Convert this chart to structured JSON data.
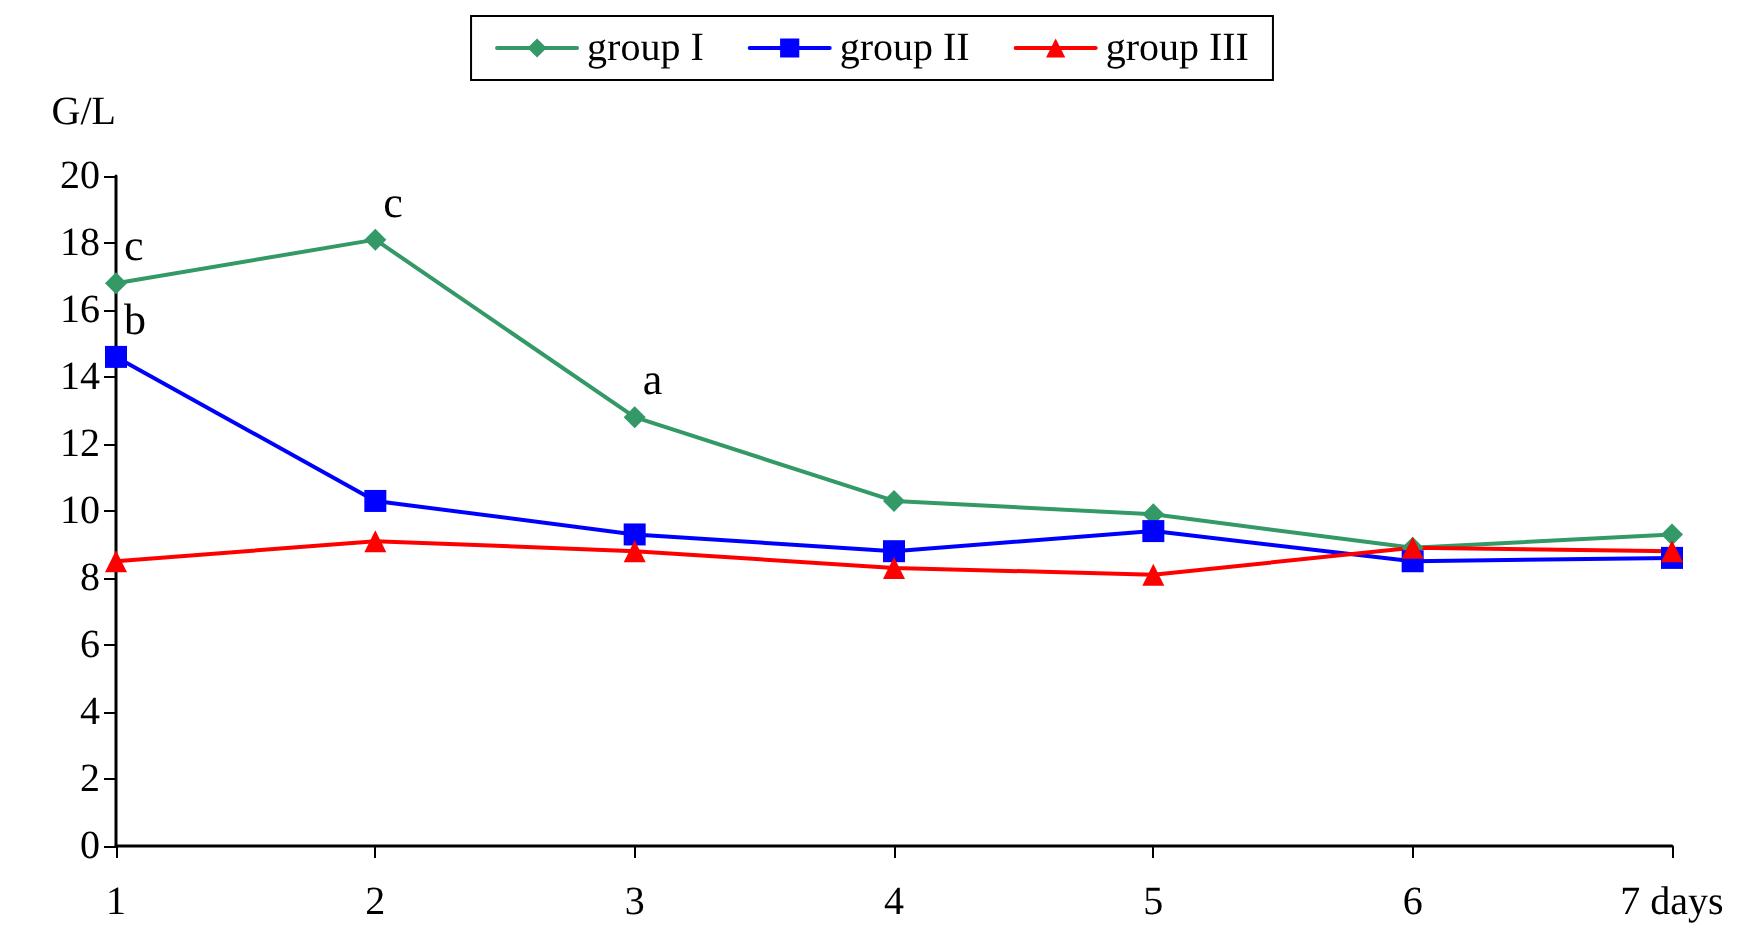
{
  "chart_data": {
    "type": "line",
    "ylabel": "G/L",
    "categories": [
      "1",
      "2",
      "3",
      "4",
      "5",
      "6",
      "7 days"
    ],
    "series": [
      {
        "name": "group I",
        "color": "#339966",
        "marker": "diamond",
        "values": [
          16.8,
          18.1,
          12.8,
          10.3,
          9.9,
          8.9,
          9.3
        ]
      },
      {
        "name": "group II",
        "color": "#0000ff",
        "marker": "square",
        "values": [
          14.6,
          10.3,
          9.3,
          8.8,
          9.4,
          8.5,
          8.6
        ]
      },
      {
        "name": "group III",
        "color": "#ff0000",
        "marker": "triangle",
        "values": [
          8.5,
          9.1,
          8.8,
          8.3,
          8.1,
          8.9,
          8.8
        ]
      }
    ],
    "ylim": [
      0,
      20
    ],
    "yticks": [
      0,
      2,
      4,
      6,
      8,
      10,
      12,
      14,
      16,
      18,
      20
    ],
    "grid": false,
    "legend": "top",
    "annotations": [
      {
        "text": "c",
        "x": "1",
        "y": 16.8
      },
      {
        "text": "c",
        "x": "2",
        "y": 18.1
      },
      {
        "text": "a",
        "x": "3",
        "y": 12.8
      },
      {
        "text": "b",
        "x": "1",
        "y": 14.6
      }
    ]
  }
}
